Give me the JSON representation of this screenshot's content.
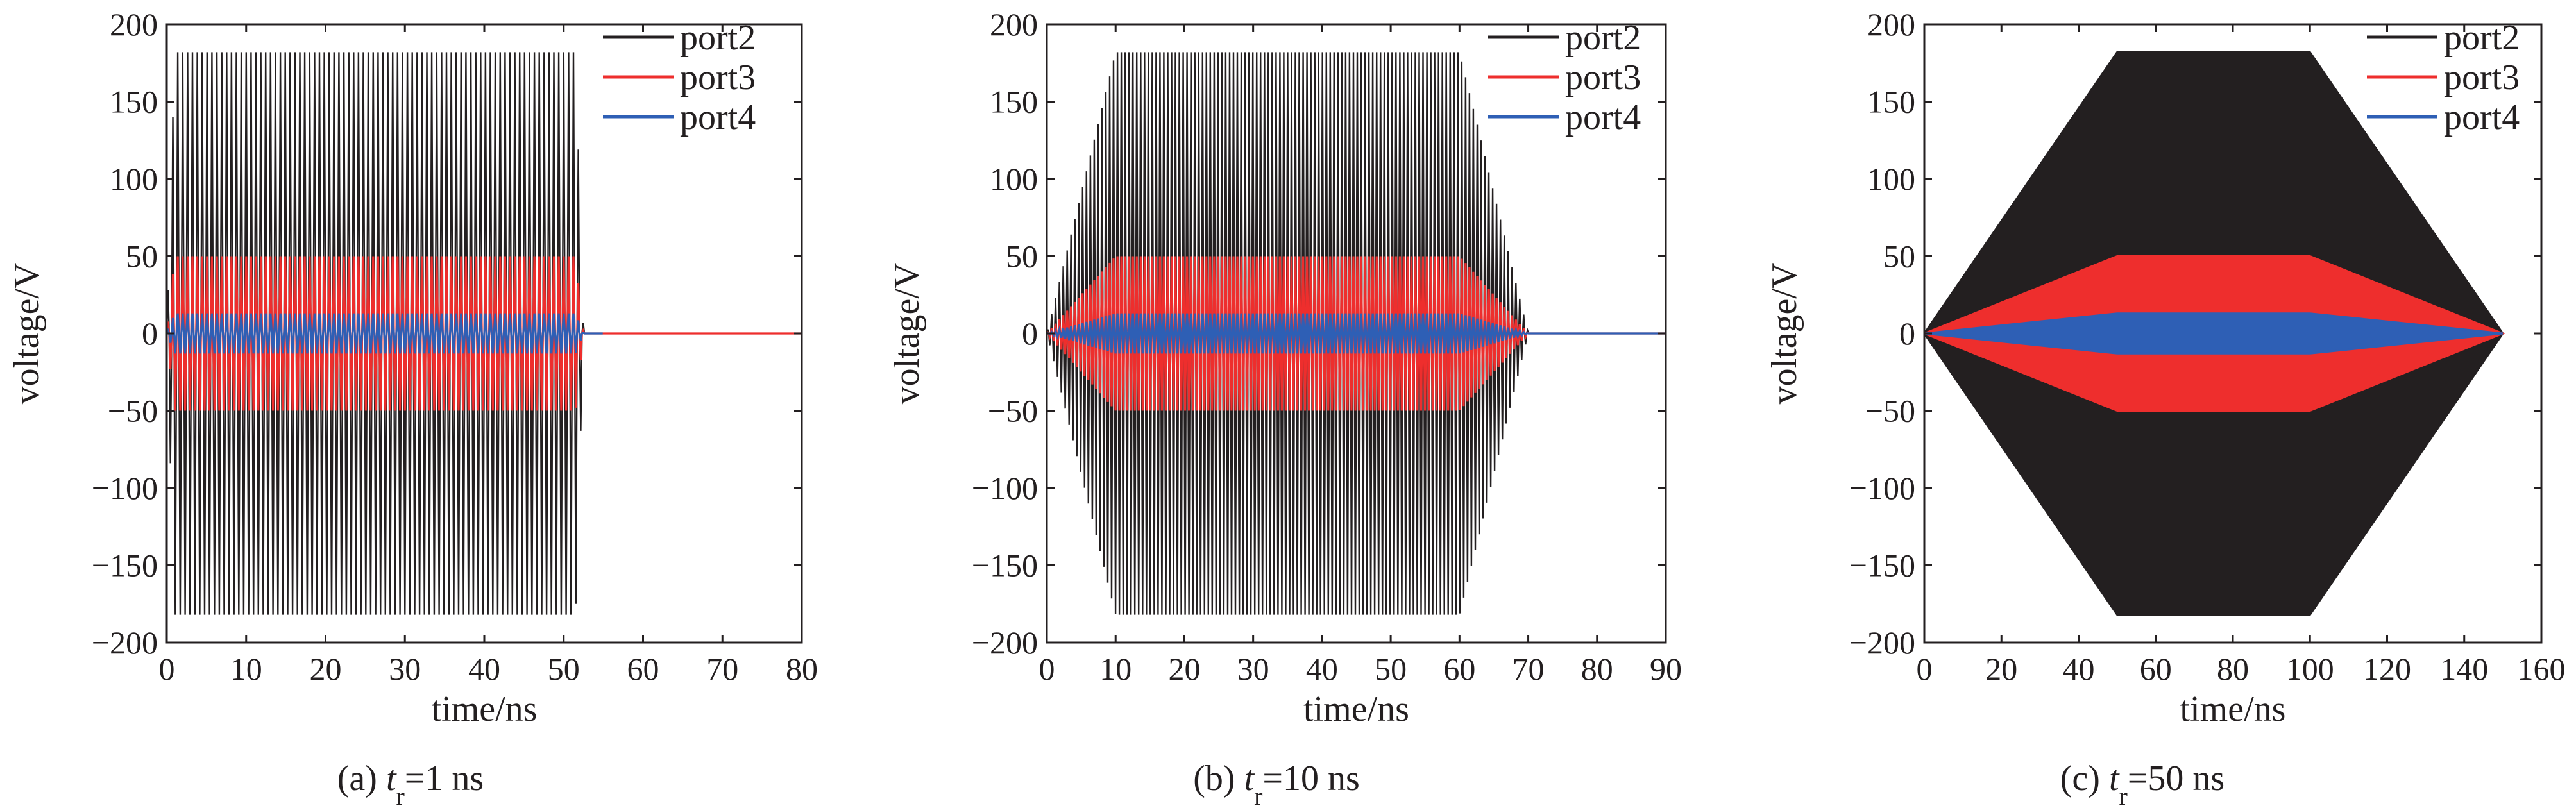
{
  "figure": {
    "background": "#ffffff"
  },
  "chart_data": [
    {
      "type": "line",
      "caption": {
        "prefix": "(a) ",
        "var": "t",
        "sub": "r",
        "suffix": "=1 ns"
      },
      "xlabel": "time/ns",
      "ylabel": "voltage/V",
      "xlim": [
        0,
        80
      ],
      "ylim": [
        -200,
        200
      ],
      "xticks": [
        0,
        10,
        20,
        30,
        40,
        50,
        60,
        70,
        80
      ],
      "yticks": [
        200,
        150,
        100,
        50,
        0,
        -50,
        -100,
        -150,
        -200
      ],
      "grid": false,
      "legend_position": "top-right",
      "rendering": "dense-oscillation",
      "oscillation_cycles": 130,
      "series": [
        {
          "name": "port2",
          "color": "#231f20",
          "envelope": [
            [
              0,
              0
            ],
            [
              1,
              182
            ],
            [
              51.5,
              182
            ],
            [
              52.5,
              0
            ],
            [
              80,
              0
            ]
          ]
        },
        {
          "name": "port3",
          "color": "#ee2e2d",
          "envelope": [
            [
              0,
              0
            ],
            [
              1,
              50
            ],
            [
              51.5,
              50
            ],
            [
              52.5,
              0
            ],
            [
              80,
              0
            ]
          ]
        },
        {
          "name": "port4",
          "color": "#2e5fb5",
          "envelope": [
            [
              0,
              0
            ],
            [
              1,
              13
            ],
            [
              51.5,
              13
            ],
            [
              52.5,
              0
            ],
            [
              55,
              0
            ]
          ]
        }
      ]
    },
    {
      "type": "line",
      "caption": {
        "prefix": "(b) ",
        "var": "t",
        "sub": "r",
        "suffix": "=10 ns"
      },
      "xlabel": "time/ns",
      "ylabel": "voltage/V",
      "xlim": [
        0,
        90
      ],
      "ylim": [
        -200,
        200
      ],
      "xticks": [
        0,
        10,
        20,
        30,
        40,
        50,
        60,
        70,
        80,
        90
      ],
      "yticks": [
        200,
        150,
        100,
        50,
        0,
        -50,
        -100,
        -150,
        -200
      ],
      "grid": false,
      "legend_position": "top-right",
      "rendering": "dense-oscillation",
      "oscillation_cycles": 160,
      "series": [
        {
          "name": "port2",
          "color": "#231f20",
          "envelope": [
            [
              0,
              0
            ],
            [
              10,
              182
            ],
            [
              60,
              182
            ],
            [
              70,
              0
            ],
            [
              90,
              0
            ]
          ]
        },
        {
          "name": "port3",
          "color": "#ee2e2d",
          "envelope": [
            [
              0,
              0
            ],
            [
              10,
              50
            ],
            [
              60,
              50
            ],
            [
              70,
              0
            ],
            [
              90,
              0
            ]
          ]
        },
        {
          "name": "port4",
          "color": "#2e5fb5",
          "envelope": [
            [
              0,
              0
            ],
            [
              10,
              13
            ],
            [
              60,
              13
            ],
            [
              70,
              0
            ],
            [
              90,
              0
            ]
          ]
        }
      ]
    },
    {
      "type": "area",
      "caption": {
        "prefix": "(c) ",
        "var": "t",
        "sub": "r",
        "suffix": "=50 ns"
      },
      "xlabel": "time/ns",
      "ylabel": "voltage/V",
      "xlim": [
        0,
        160
      ],
      "ylim": [
        -200,
        200
      ],
      "xticks": [
        0,
        20,
        40,
        60,
        80,
        100,
        120,
        140,
        160
      ],
      "yticks": [
        200,
        150,
        100,
        50,
        0,
        -50,
        -100,
        -150,
        -200
      ],
      "grid": false,
      "legend_position": "top-right",
      "rendering": "solid-envelope",
      "series": [
        {
          "name": "port2",
          "color": "#231f20",
          "envelope": [
            [
              0,
              0
            ],
            [
              50,
              182
            ],
            [
              100,
              182
            ],
            [
              150,
              0
            ]
          ]
        },
        {
          "name": "port3",
          "color": "#ee2e2d",
          "envelope": [
            [
              0,
              0
            ],
            [
              50,
              50
            ],
            [
              100,
              50
            ],
            [
              150,
              0
            ]
          ]
        },
        {
          "name": "port4",
          "color": "#2e5fb5",
          "envelope": [
            [
              0,
              0
            ],
            [
              50,
              13
            ],
            [
              100,
              13
            ],
            [
              150,
              0
            ]
          ]
        }
      ]
    }
  ]
}
